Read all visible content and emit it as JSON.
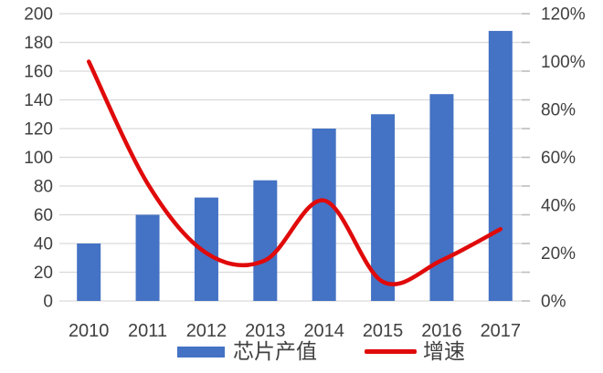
{
  "chart_data": {
    "type": "combo",
    "title": "",
    "categories": [
      "2010",
      "2011",
      "2012",
      "2013",
      "2014",
      "2015",
      "2016",
      "2017"
    ],
    "series": [
      {
        "name": "芯片产值",
        "type": "bar",
        "axis": "left",
        "color": "#4472C4",
        "values": [
          40,
          60,
          72,
          84,
          120,
          130,
          144,
          188
        ]
      },
      {
        "name": "增速",
        "type": "line",
        "axis": "right",
        "color": "#E00A0A",
        "smooth": true,
        "values": [
          100,
          49,
          20,
          17,
          42,
          8,
          17,
          30
        ],
        "unit": "%"
      }
    ],
    "left_axis": {
      "min": 0,
      "max": 200,
      "step": 20,
      "ticks": [
        "0",
        "20",
        "40",
        "60",
        "80",
        "100",
        "120",
        "140",
        "160",
        "180",
        "200"
      ]
    },
    "right_axis": {
      "min": 0,
      "max": 120,
      "step": 20,
      "unit": "%",
      "ticks": [
        "0%",
        "20%",
        "40%",
        "60%",
        "80%",
        "100%",
        "120%"
      ]
    },
    "grid": true,
    "gridline_color": "#D9D9D9",
    "tick_color": "#BFBFBF",
    "text_color": "#404040",
    "legend_position": "bottom"
  },
  "legend": {
    "bar_label": "芯片产值",
    "line_label": "增速"
  }
}
